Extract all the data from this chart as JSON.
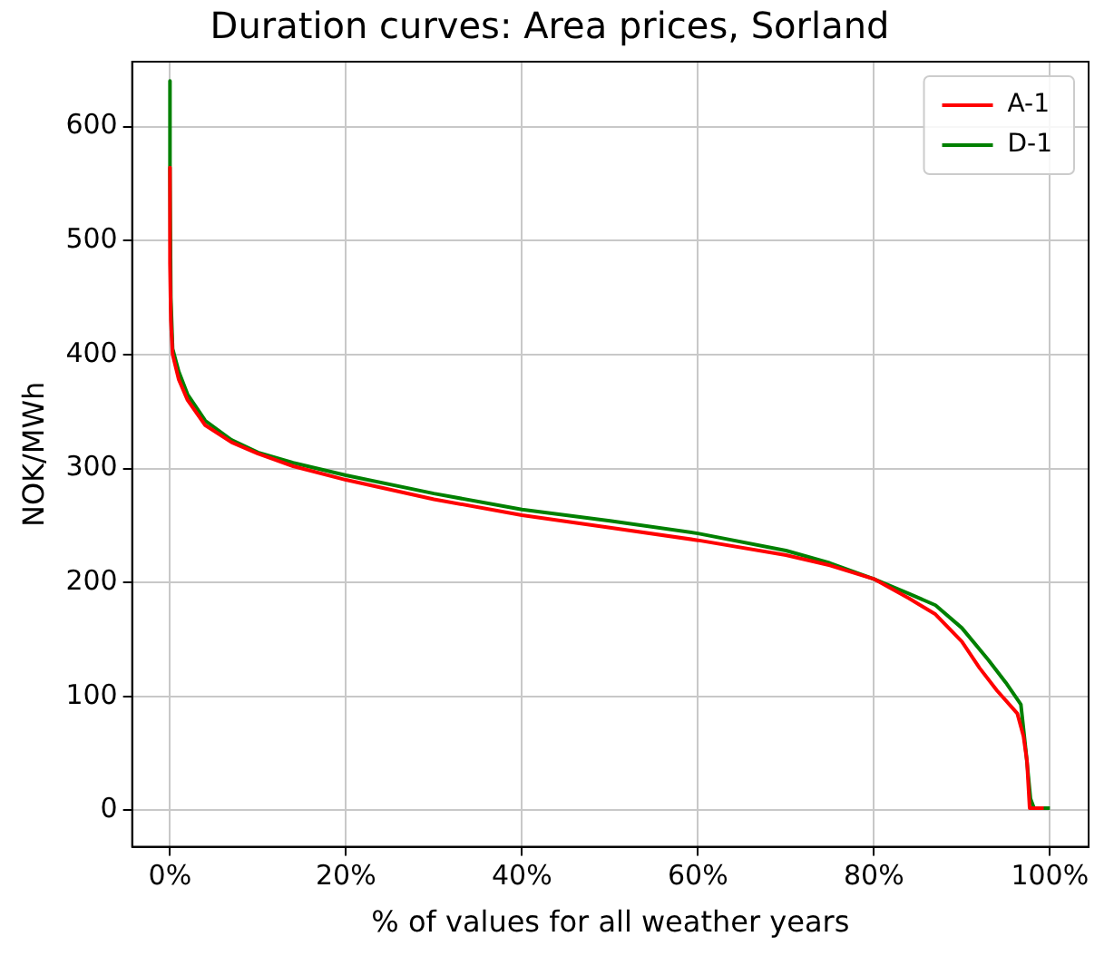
{
  "chart_data": {
    "type": "line",
    "title": "Duration curves: Area prices, Sorland",
    "xlabel": "% of values for all weather years",
    "ylabel": "NOK/MWh",
    "xlim": [
      -4.3,
      104.4
    ],
    "xticks": [
      {
        "value": 0,
        "label": "0%"
      },
      {
        "value": 20,
        "label": "20%"
      },
      {
        "value": 40,
        "label": "40%"
      },
      {
        "value": 60,
        "label": "60%"
      },
      {
        "value": 80,
        "label": "80%"
      },
      {
        "value": 100,
        "label": "100%"
      }
    ],
    "ylim": [
      -32,
      657
    ],
    "yticks": [
      0,
      100,
      200,
      300,
      400,
      500,
      600
    ],
    "grid": true,
    "legend": "top right",
    "marker": "none",
    "line_style": "solid",
    "series": [
      {
        "name": "A-1",
        "color": "#ff0000",
        "x": [
          0,
          0,
          0.1,
          0.3,
          1,
          2,
          4,
          7,
          10,
          14,
          20,
          30,
          40,
          50,
          60,
          70,
          75,
          80,
          84,
          87,
          90,
          92,
          94,
          96.3,
          97,
          97.4,
          97.7,
          99.3
        ],
        "values": [
          564,
          480,
          430,
          400,
          378,
          360,
          338,
          323,
          313,
          302,
          290,
          273,
          259,
          248,
          237,
          224,
          215,
          203,
          186,
          172,
          148,
          125,
          105,
          85,
          65,
          43,
          2,
          2
        ]
      },
      {
        "name": "D-1",
        "color": "#008000",
        "x": [
          0,
          0,
          0.1,
          0.3,
          1,
          2,
          4,
          7,
          10,
          14,
          20,
          30,
          40,
          50,
          60,
          70,
          75,
          80,
          84,
          87,
          90,
          93,
          95,
          96.7,
          97.3,
          97.8,
          98.2,
          100
        ],
        "values": [
          640,
          560,
          450,
          405,
          385,
          365,
          342,
          325,
          314,
          305,
          294,
          278,
          264,
          254,
          243,
          228,
          217,
          203,
          190,
          180,
          160,
          132,
          112,
          93,
          50,
          10,
          2,
          2
        ]
      }
    ]
  }
}
